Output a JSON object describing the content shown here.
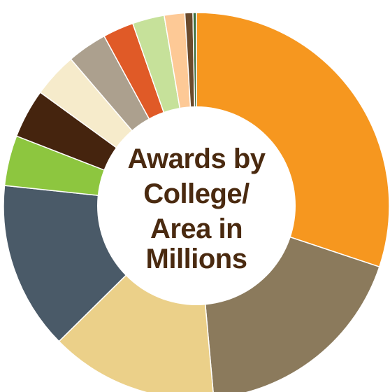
{
  "chart_data": {
    "type": "pie",
    "title_lines": [
      "Awards by",
      "College/",
      "Area in",
      "Millions"
    ],
    "slices": [
      {
        "value": 31.5,
        "color": "#f6971f"
      },
      {
        "value": 19.3,
        "color": "#8b7a5c"
      },
      {
        "value": 14.7,
        "color": "#ebd089"
      },
      {
        "value": 14.7,
        "color": "#4a5a68"
      },
      {
        "value": 4.4,
        "color": "#8dc63f"
      },
      {
        "value": 4.3,
        "color": "#45240e"
      },
      {
        "value": 3.9,
        "color": "#f6ebcb"
      },
      {
        "value": 3.5,
        "color": "#aca08e"
      },
      {
        "value": 2.7,
        "color": "#e05a27"
      },
      {
        "value": 2.8,
        "color": "#c6e19a"
      },
      {
        "value": 1.8,
        "color": "#fdc996"
      },
      {
        "value": 0.7,
        "color": "#6b4a2c"
      },
      {
        "value": 0.3,
        "color": "#3c6e3c"
      }
    ]
  }
}
